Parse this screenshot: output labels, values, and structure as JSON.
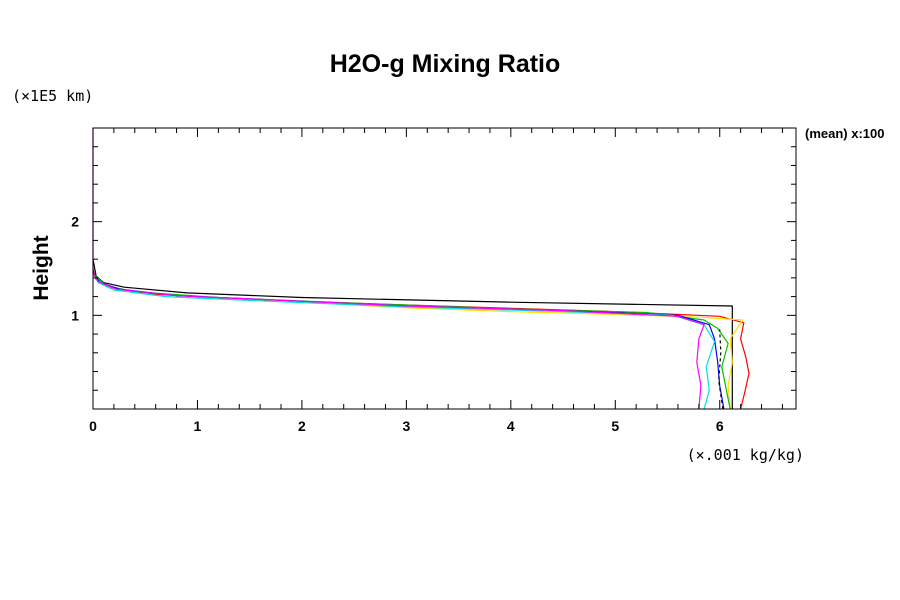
{
  "chart_data": {
    "type": "line",
    "title": "H2O-g Mixing Ratio",
    "ylabel": "Height",
    "y_unit": "(×1E5 km)",
    "x_unit": "(×.001 kg/kg)",
    "side_label": "(mean) x:100",
    "xlim": [
      0,
      6.73
    ],
    "ylim": [
      0,
      3.0
    ],
    "x_ticks": [
      "0",
      "1",
      "2",
      "3",
      "4",
      "5",
      "6"
    ],
    "y_ticks": [
      "1",
      "2"
    ],
    "grid": false,
    "series": [
      {
        "color": "#000000",
        "points": [
          [
            6.12,
            0
          ],
          [
            6.12,
            1.1
          ],
          [
            4.0,
            1.14
          ],
          [
            2.0,
            1.19
          ],
          [
            0.9,
            1.24
          ],
          [
            0.3,
            1.3
          ],
          [
            0.1,
            1.35
          ],
          [
            0.03,
            1.42
          ],
          [
            0,
            1.6
          ]
        ]
      },
      {
        "color": "#ff0000",
        "points": [
          [
            6.2,
            0
          ],
          [
            6.24,
            0.18
          ],
          [
            6.28,
            0.38
          ],
          [
            6.25,
            0.55
          ],
          [
            6.2,
            0.75
          ],
          [
            6.23,
            0.92
          ],
          [
            6.0,
            0.99
          ],
          [
            5.0,
            1.04
          ],
          [
            3.0,
            1.11
          ],
          [
            1.5,
            1.17
          ],
          [
            0.5,
            1.23
          ],
          [
            0.15,
            1.3
          ],
          [
            0.03,
            1.38
          ],
          [
            0,
            1.5
          ]
        ]
      },
      {
        "color": "#ffe000",
        "points": [
          [
            6.1,
            0
          ],
          [
            6.08,
            0.25
          ],
          [
            6.12,
            0.5
          ],
          [
            6.1,
            0.75
          ],
          [
            6.22,
            0.95
          ],
          [
            5.8,
            0.98
          ],
          [
            5.0,
            1.01
          ],
          [
            4.0,
            1.04
          ],
          [
            3.0,
            1.08
          ],
          [
            2.0,
            1.14
          ],
          [
            1.0,
            1.2
          ],
          [
            0.35,
            1.26
          ],
          [
            0.1,
            1.32
          ],
          [
            0,
            1.45
          ]
        ]
      },
      {
        "color": "#00c000",
        "points": [
          [
            6.1,
            0
          ],
          [
            6.06,
            0.22
          ],
          [
            6.02,
            0.45
          ],
          [
            6.08,
            0.7
          ],
          [
            5.98,
            0.86
          ],
          [
            5.85,
            0.95
          ],
          [
            5.3,
            1.03
          ],
          [
            4.0,
            1.07
          ],
          [
            2.5,
            1.13
          ],
          [
            1.2,
            1.19
          ],
          [
            0.4,
            1.25
          ],
          [
            0.12,
            1.32
          ],
          [
            0,
            1.45
          ]
        ]
      },
      {
        "color": "#0000ff",
        "points": [
          [
            6.04,
            0
          ],
          [
            6.0,
            0.25
          ],
          [
            5.98,
            0.5
          ],
          [
            5.95,
            0.75
          ],
          [
            5.9,
            0.9
          ],
          [
            5.6,
            1.0
          ],
          [
            4.5,
            1.05
          ],
          [
            3.0,
            1.1
          ],
          [
            1.8,
            1.16
          ],
          [
            0.8,
            1.21
          ],
          [
            0.25,
            1.28
          ],
          [
            0.07,
            1.35
          ],
          [
            0,
            1.45
          ]
        ]
      },
      {
        "color": "#000000",
        "dash": "3,3",
        "points": [
          [
            6.03,
            0
          ],
          [
            5.99,
            0.3
          ],
          [
            6.01,
            0.6
          ],
          [
            6.0,
            0.85
          ]
        ]
      },
      {
        "color": "#00e0e0",
        "points": [
          [
            5.85,
            0
          ],
          [
            5.9,
            0.2
          ],
          [
            5.87,
            0.45
          ],
          [
            5.95,
            0.72
          ],
          [
            5.85,
            0.9
          ],
          [
            5.55,
            1.0
          ],
          [
            4.5,
            1.04
          ],
          [
            3.0,
            1.09
          ],
          [
            1.7,
            1.15
          ],
          [
            0.7,
            1.2
          ],
          [
            0.2,
            1.27
          ],
          [
            0.05,
            1.35
          ],
          [
            0,
            1.45
          ]
        ]
      },
      {
        "color": "#ff00ff",
        "points": [
          [
            5.8,
            0
          ],
          [
            5.82,
            0.25
          ],
          [
            5.78,
            0.5
          ],
          [
            5.8,
            0.75
          ],
          [
            5.85,
            0.9
          ],
          [
            5.6,
            0.99
          ],
          [
            4.5,
            1.05
          ],
          [
            3.0,
            1.1
          ],
          [
            1.8,
            1.16
          ],
          [
            0.8,
            1.21
          ],
          [
            0.22,
            1.28
          ],
          [
            0.05,
            1.36
          ],
          [
            0,
            1.45
          ],
          [
            0,
            3.0
          ]
        ]
      }
    ]
  }
}
